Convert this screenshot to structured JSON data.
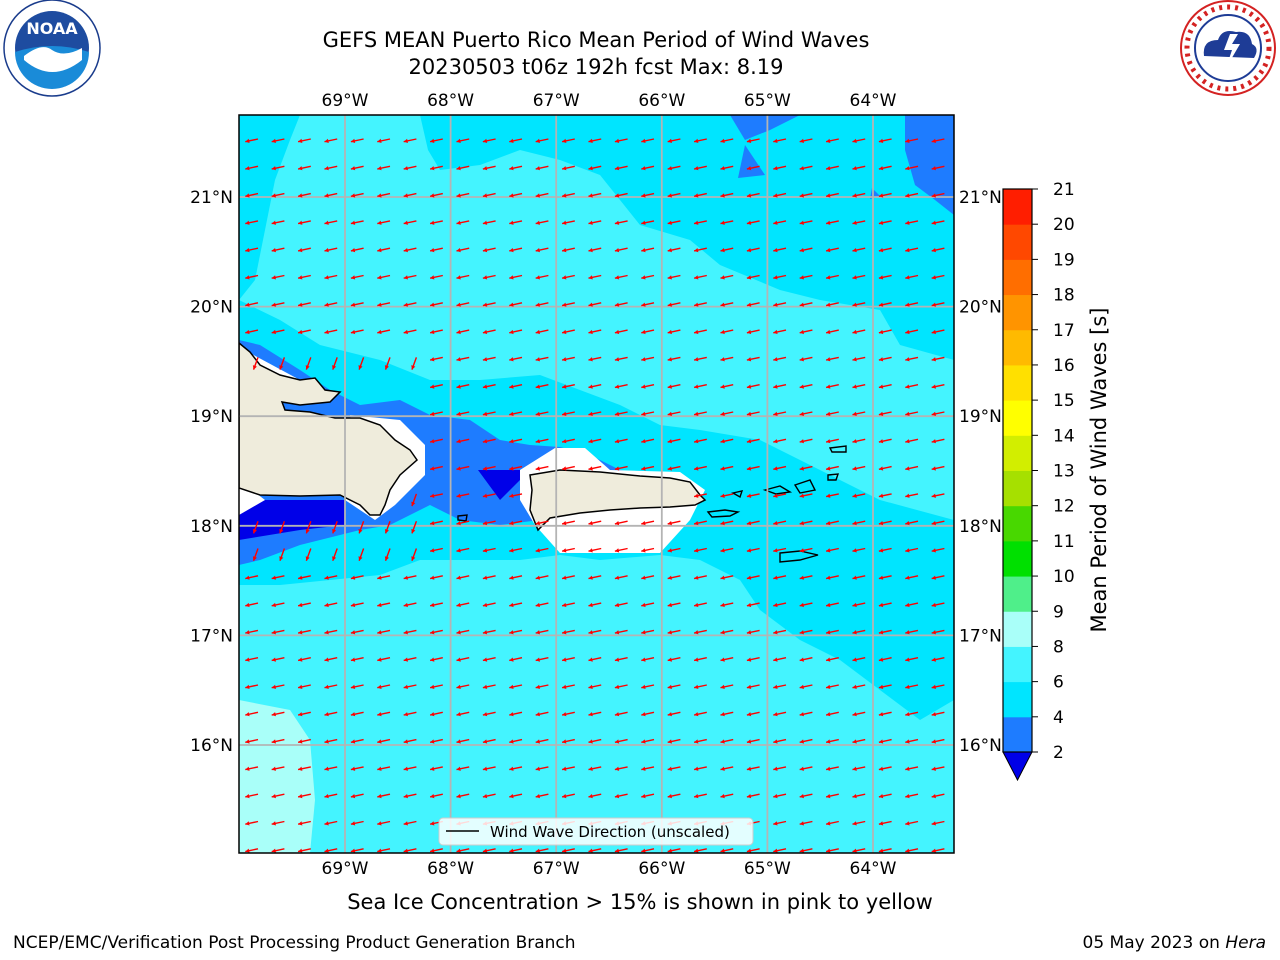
{
  "header": {
    "title_line1": "GEFS MEAN Puerto Rico Mean Period of Wind Waves",
    "title_line2": "20230503 t06z 192h fcst   Max: 8.19"
  },
  "logos": {
    "left": {
      "icon": "noaa-logo-icon",
      "text": "NOAA"
    },
    "right": {
      "icon": "nws-logo-icon"
    }
  },
  "map": {
    "lon_ticks": [
      "69°W",
      "68°W",
      "67°W",
      "66°W",
      "65°W",
      "64°W"
    ],
    "lat_ticks": [
      "21°N",
      "20°N",
      "19°N",
      "18°N",
      "17°N",
      "16°N"
    ],
    "legend_label": "Wind Wave Direction (unscaled)",
    "arrow_color": "#ff0000",
    "land_color": "#efecdc"
  },
  "colorbar": {
    "label": "Mean Period of Wind Waves [s]",
    "ticks": [
      "2",
      "4",
      "6",
      "8",
      "9",
      "10",
      "11",
      "12",
      "13",
      "14",
      "15",
      "16",
      "17",
      "18",
      "19",
      "20",
      "21"
    ],
    "colors": [
      "#1e7cff",
      "#00e5ff",
      "#44f4ff",
      "#a9fff9",
      "#4fef8a",
      "#00e000",
      "#48d800",
      "#a6e000",
      "#d2ee00",
      "#ffff00",
      "#ffe000",
      "#ffba00",
      "#ff9400",
      "#ff6e00",
      "#ff4800",
      "#ff1e00",
      "#ff0000"
    ],
    "under_color": "#0000e8"
  },
  "footer": {
    "note": "Sea Ice Concentration > 15% is shown in pink to yellow",
    "left": "NCEP/EMC/Verification Post Processing Product Generation Branch",
    "date": "05 May 2023 on ",
    "machine": "Hera"
  }
}
